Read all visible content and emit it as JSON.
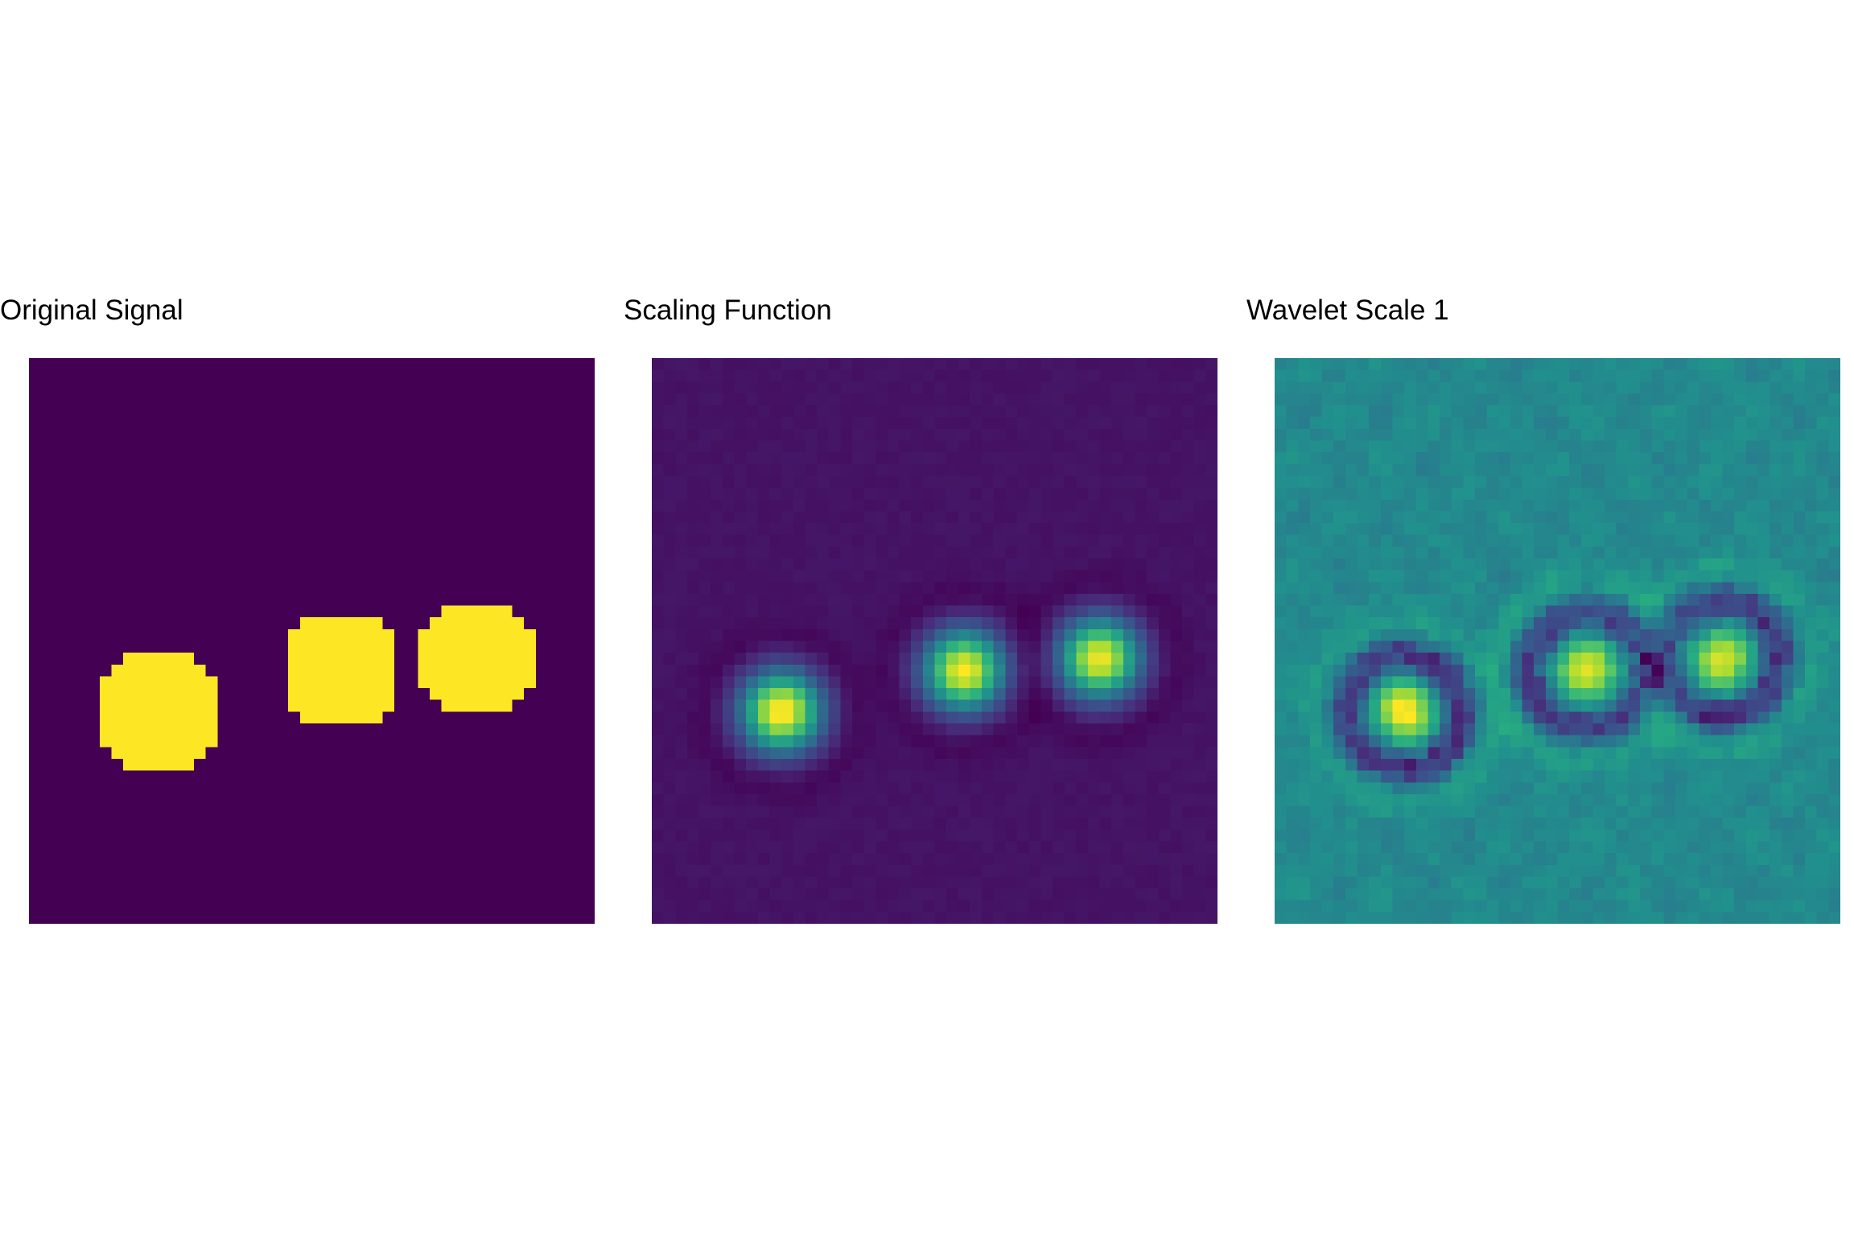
{
  "chart_data": [
    {
      "type": "heatmap",
      "title": "Original Signal",
      "grid": false,
      "axes_visible": false,
      "colormap": "viridis",
      "resolution": [
        48,
        48
      ],
      "model": "binary",
      "blobs": [
        {
          "col": 11,
          "row": 30,
          "amplitude": 1.0
        },
        {
          "col": 26.5,
          "row": 26.5,
          "amplitude": 1.0
        },
        {
          "col": 38,
          "row": 25.5,
          "amplitude": 1.0
        }
      ]
    },
    {
      "type": "heatmap",
      "title": "Scaling Function",
      "grid": false,
      "axes_visible": false,
      "colormap": "viridis",
      "resolution": [
        48,
        48
      ],
      "model": "smooth",
      "blobs": [
        {
          "col": 11,
          "row": 30,
          "amplitude": 1.0
        },
        {
          "col": 26.5,
          "row": 26.5,
          "amplitude": 0.97
        },
        {
          "col": 38,
          "row": 25.5,
          "amplitude": 0.96
        }
      ]
    },
    {
      "type": "heatmap",
      "title": "Wavelet Scale 1",
      "grid": false,
      "axes_visible": false,
      "colormap": "viridis",
      "resolution": [
        48,
        48
      ],
      "model": "detail",
      "blobs": [
        {
          "col": 11,
          "row": 30,
          "amplitude": 0.9
        },
        {
          "col": 26.5,
          "row": 26.5,
          "amplitude": 0.85
        },
        {
          "col": 38,
          "row": 25.5,
          "amplitude": 0.8
        }
      ]
    }
  ]
}
